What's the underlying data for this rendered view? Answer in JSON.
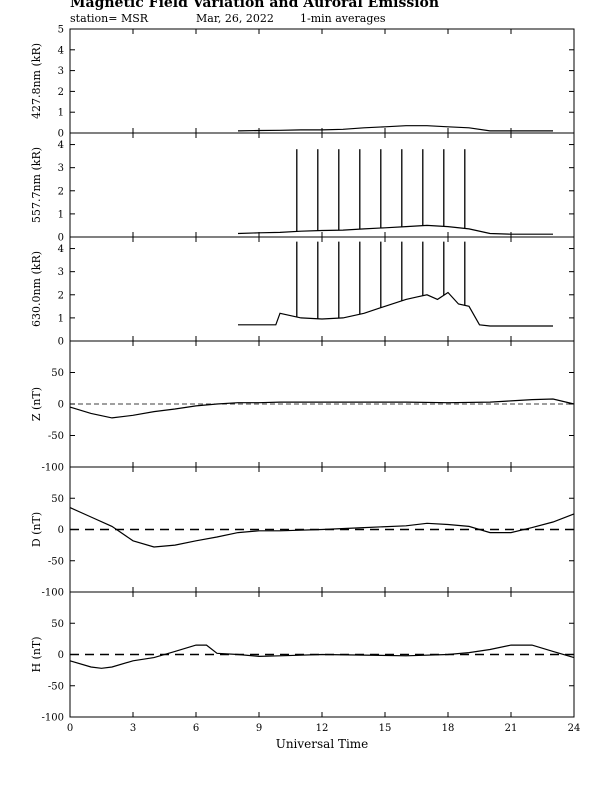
{
  "header": {
    "title": "Magnetic Field Variation and Auroral Emission",
    "station": "station= MSR",
    "date": "Mar, 26, 2022",
    "averaging": "1-min averages"
  },
  "x_axis": {
    "label": "Universal Time",
    "range": [
      0,
      24
    ],
    "ticks": [
      "0",
      "3",
      "6",
      "9",
      "12",
      "15",
      "18",
      "21",
      "24"
    ]
  },
  "chart_data": [
    {
      "type": "line",
      "ylabel": "427.8nm (kR)",
      "ylim": [
        0,
        5
      ],
      "yticks": [
        "0",
        "1",
        "2",
        "3",
        "4",
        "5"
      ],
      "x": [
        8,
        9,
        10,
        11,
        12,
        13,
        14,
        15,
        16,
        17,
        18,
        19,
        20,
        21,
        22,
        23
      ],
      "y": [
        0.1,
        0.12,
        0.13,
        0.15,
        0.15,
        0.18,
        0.25,
        0.3,
        0.35,
        0.35,
        0.3,
        0.25,
        0.1,
        0.1,
        0.1,
        0.1
      ],
      "grid": false
    },
    {
      "type": "line",
      "ylabel": "557.7nm (kR)",
      "ylim": [
        0,
        4.5
      ],
      "yticks": [
        "0",
        "1",
        "2",
        "3",
        "4"
      ],
      "x": [
        8,
        9,
        10,
        11,
        12,
        13,
        14,
        15,
        16,
        17,
        18,
        19,
        20,
        21,
        22,
        23
      ],
      "y": [
        0.15,
        0.18,
        0.2,
        0.25,
        0.28,
        0.3,
        0.35,
        0.4,
        0.45,
        0.5,
        0.45,
        0.35,
        0.15,
        0.12,
        0.12,
        0.12
      ],
      "spikes": {
        "x": [
          10.8,
          11.8,
          12.8,
          13.8,
          14.8,
          15.8,
          16.8,
          17.8,
          18.8
        ],
        "y": 3.8
      },
      "grid": false
    },
    {
      "type": "line",
      "ylabel": "630.0nm (kR)",
      "ylim": [
        0,
        4.5
      ],
      "yticks": [
        "0",
        "1",
        "2",
        "3",
        "4"
      ],
      "x": [
        8,
        9,
        9.8,
        10,
        11,
        12,
        13,
        14,
        15,
        16,
        16.5,
        17,
        17.5,
        18,
        18.5,
        19,
        19.5,
        20,
        21,
        22,
        23
      ],
      "y": [
        0.7,
        0.7,
        0.7,
        1.2,
        1.0,
        0.95,
        1.0,
        1.2,
        1.5,
        1.8,
        1.9,
        2.0,
        1.8,
        2.1,
        1.6,
        1.5,
        0.7,
        0.65,
        0.65,
        0.65,
        0.65
      ],
      "spikes": {
        "x": [
          10.8,
          11.8,
          12.8,
          13.8,
          14.8,
          15.8,
          16.8,
          17.8,
          18.8
        ],
        "y": 4.3
      },
      "grid": false
    },
    {
      "type": "line",
      "ylabel": "Z (nT)",
      "ylim": [
        -100,
        100
      ],
      "yticks": [
        "50",
        "0",
        "-50",
        "-100"
      ],
      "x": [
        0,
        1,
        2,
        3,
        4,
        5,
        6,
        7,
        8,
        9,
        10,
        12,
        14,
        16,
        18,
        20,
        21,
        22,
        23,
        24
      ],
      "y": [
        -5,
        -15,
        -22,
        -18,
        -12,
        -8,
        -3,
        0,
        2,
        2,
        3,
        3,
        3,
        3,
        2,
        3,
        5,
        7,
        8,
        0
      ],
      "baseline": 0,
      "grid": false
    },
    {
      "type": "line",
      "ylabel": "D (nT)",
      "ylim": [
        -100,
        100
      ],
      "yticks": [
        "50",
        "0",
        "-50",
        "-100"
      ],
      "x": [
        0,
        1,
        2,
        3,
        4,
        5,
        6,
        7,
        8,
        9,
        10,
        12,
        14,
        16,
        17,
        18,
        19,
        20,
        21,
        22,
        23,
        24
      ],
      "y": [
        35,
        20,
        5,
        -18,
        -28,
        -25,
        -18,
        -12,
        -5,
        -2,
        -2,
        0,
        3,
        6,
        10,
        8,
        5,
        -5,
        -5,
        3,
        12,
        25
      ],
      "baseline": 0,
      "grid": false
    },
    {
      "type": "line",
      "ylabel": "H (nT)",
      "ylim": [
        -100,
        100
      ],
      "yticks": [
        "50",
        "0",
        "-50",
        "-100"
      ],
      "x": [
        0,
        1,
        1.5,
        2,
        3,
        4,
        5,
        6,
        6.5,
        7,
        8,
        9,
        10,
        12,
        14,
        16,
        18,
        19,
        20,
        21,
        22,
        23,
        24
      ],
      "y": [
        -10,
        -20,
        -22,
        -20,
        -10,
        -5,
        5,
        15,
        15,
        2,
        0,
        -3,
        -2,
        0,
        -1,
        -2,
        0,
        3,
        8,
        15,
        15,
        5,
        -5
      ],
      "baseline": 0,
      "grid": false
    }
  ]
}
